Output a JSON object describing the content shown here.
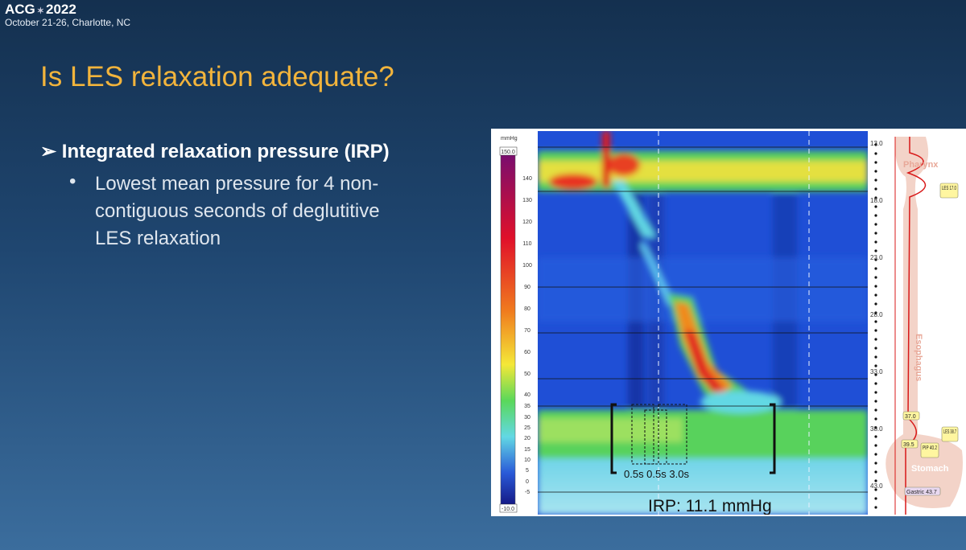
{
  "header": {
    "logo": "ACG",
    "year": "2022",
    "subtitle": "October 21-26, Charlotte, NC"
  },
  "title": "Is LES relaxation adequate?",
  "bullet": {
    "text": "Integrated relaxation pressure (IRP)",
    "sub_lines": [
      "Lowest mean pressure for 4 non-",
      "contiguous seconds of deglutitive",
      "LES relaxation"
    ]
  },
  "figure": {
    "scale_unit": "mmHg",
    "scale_labels": [
      "150.0",
      "140",
      "130",
      "120",
      "110",
      "100",
      "90",
      "80",
      "70",
      "60",
      "50",
      "40",
      "35",
      "30",
      "25",
      "20",
      "15",
      "10",
      "5",
      "0",
      "-5",
      "-10.0"
    ],
    "depth_labels": [
      "13.0",
      "18.0",
      "23.0",
      "28.0",
      "33.0",
      "38.0",
      "43.0"
    ],
    "regions": [
      "Pharynx",
      "Esophagus",
      "Stomach"
    ],
    "tags": [
      "LES 17.0",
      "37.0",
      "LES 38.7",
      "39.5",
      "PIP 40.2",
      "Gastric 43.7"
    ],
    "intervals": "0.5s 0.5s 3.0s",
    "irp": "IRP: 11.1 mmHg"
  }
}
